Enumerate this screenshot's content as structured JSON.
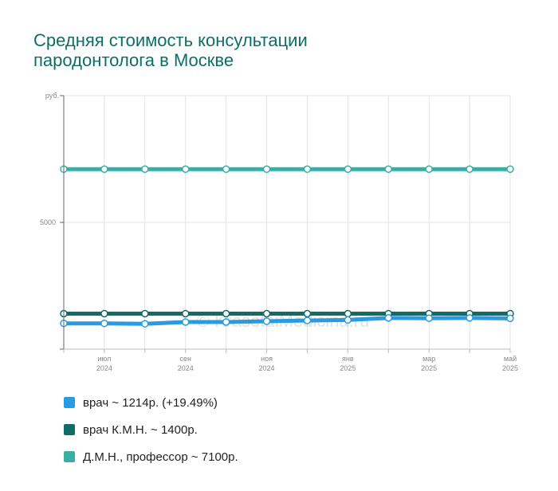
{
  "title_lines": [
    "Средняя стоимость консультации",
    "пародонтолога в Москве"
  ],
  "watermark": "© KrasotaiMedicina.ru",
  "chart_data": {
    "type": "line",
    "ylabel": "руб.",
    "ylim": [
      0,
      10000
    ],
    "yticks": [
      5000
    ],
    "grid": true,
    "legend_position": "bottom",
    "x": [
      "2024-06",
      "2024-07",
      "2024-08",
      "2024-09",
      "2024-10",
      "2024-11",
      "2024-12",
      "2025-01",
      "2025-02",
      "2025-03",
      "2025-04",
      "2025-05"
    ],
    "x_tick_labels": [
      {
        "month": "июл",
        "year": "2024"
      },
      {
        "month": "сен",
        "year": "2024"
      },
      {
        "month": "ноя",
        "year": "2024"
      },
      {
        "month": "янв",
        "year": "2025"
      },
      {
        "month": "мар",
        "year": "2025"
      },
      {
        "month": "май",
        "year": "2025"
      }
    ],
    "series": [
      {
        "name": "врач",
        "legend": "врач ~ 1214р. (+19.49%)",
        "color": "#2a9be0",
        "values": [
          1016,
          1016,
          1000,
          1070,
          1070,
          1100,
          1130,
          1150,
          1230,
          1220,
          1230,
          1214
        ]
      },
      {
        "name": "врач К.М.Н.",
        "legend": "врач К.М.Н. ~ 1400р.",
        "color": "#0e6e66",
        "values": [
          1400,
          1400,
          1400,
          1400,
          1400,
          1400,
          1400,
          1400,
          1400,
          1400,
          1400,
          1400
        ]
      },
      {
        "name": "Д.М.Н., профессор",
        "legend": "Д.М.Н., профессор ~ 7100р.",
        "color": "#3aada5",
        "values": [
          7100,
          7100,
          7100,
          7100,
          7100,
          7100,
          7100,
          7100,
          7100,
          7100,
          7100,
          7100
        ]
      }
    ]
  }
}
